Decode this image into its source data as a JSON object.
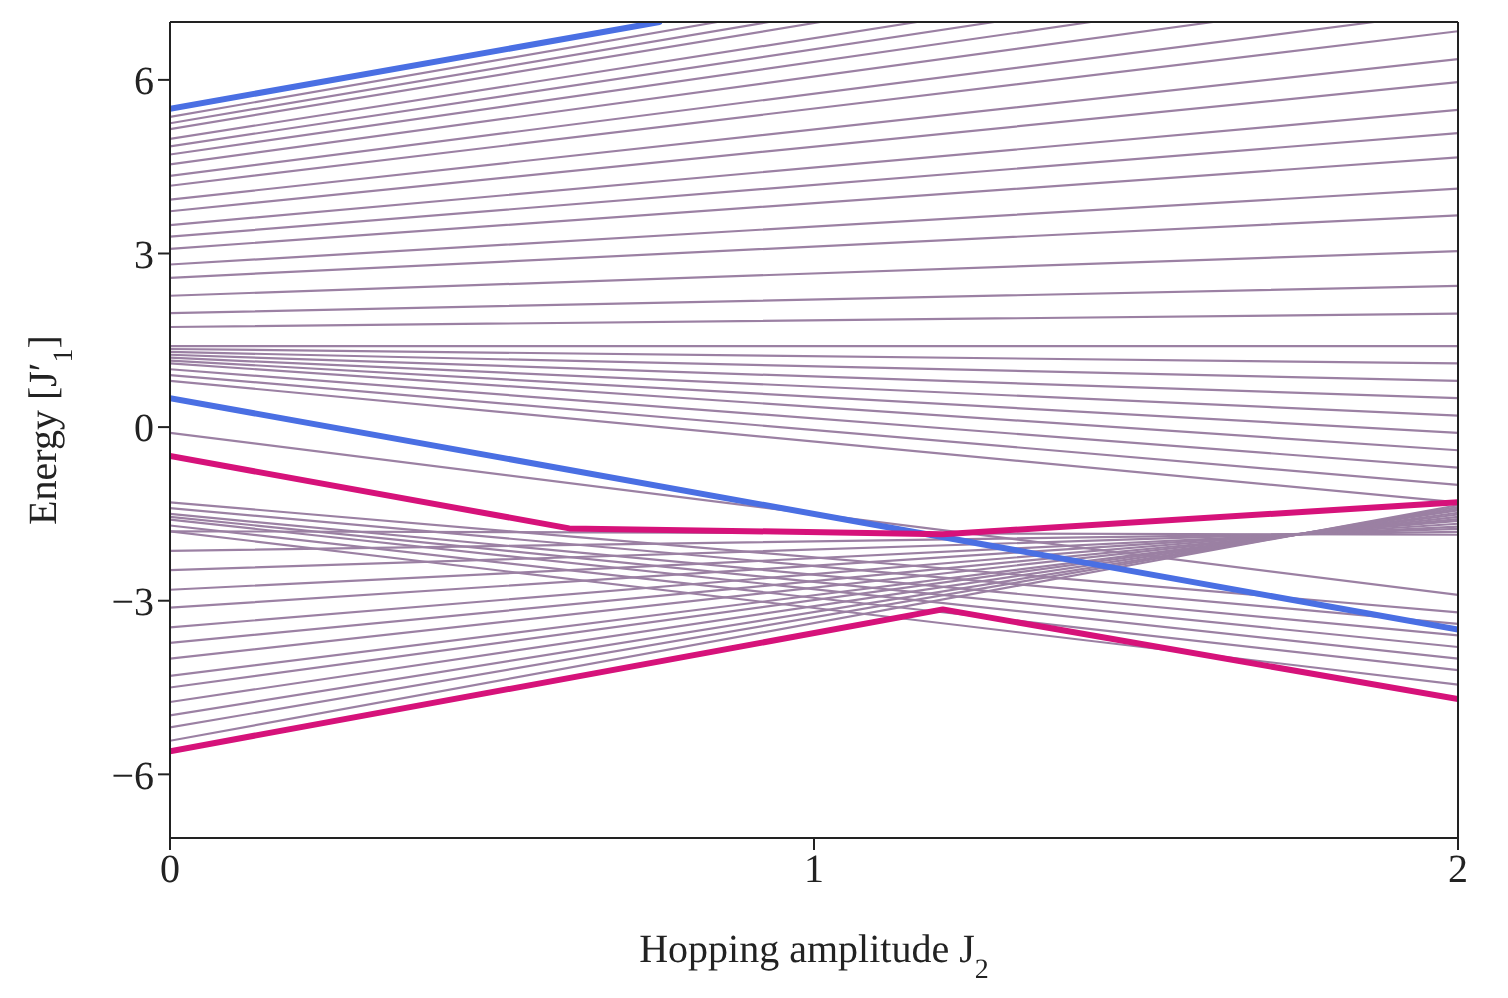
{
  "chart_data": {
    "type": "line",
    "xlabel": "Hopping amplitude J$_{2}$",
    "ylabel": "Energy [J′$_{1}$]",
    "xlim": [
      0,
      2
    ],
    "ylim": [
      -7.1,
      7
    ],
    "xticks": [
      0,
      1,
      2
    ],
    "yticks": [
      {
        "value": -6,
        "label": "−6"
      },
      {
        "value": -3,
        "label": "−3"
      },
      0,
      3,
      6
    ],
    "line_style": "solid",
    "series": [
      {
        "color": "#9b80a3",
        "x": [
          0,
          0.85
        ],
        "values": [
          5.36,
          7
        ]
      },
      {
        "color": "#9b80a3",
        "x": [
          0,
          0.93
        ],
        "values": [
          5.25,
          7
        ]
      },
      {
        "color": "#9b80a3",
        "x": [
          0,
          1.01
        ],
        "values": [
          5.15,
          7
        ]
      },
      {
        "color": "#9b80a3",
        "x": [
          0,
          1.16
        ],
        "values": [
          4.98,
          7
        ]
      },
      {
        "color": "#9b80a3",
        "x": [
          0,
          1.28
        ],
        "values": [
          4.85,
          7
        ]
      },
      {
        "color": "#9b80a3",
        "x": [
          0,
          1.43
        ],
        "values": [
          4.71,
          7
        ]
      },
      {
        "color": "#9b80a3",
        "x": [
          0,
          1.62
        ],
        "values": [
          4.54,
          7
        ]
      },
      {
        "color": "#9b80a3",
        "x": [
          0,
          1.87
        ],
        "values": [
          4.34,
          7
        ]
      },
      {
        "color": "#9b80a3",
        "x": [
          0,
          2
        ],
        "values": [
          4.17,
          6.84
        ]
      },
      {
        "color": "#9b80a3",
        "x": [
          0,
          2
        ],
        "values": [
          3.93,
          6.36
        ]
      },
      {
        "color": "#9b80a3",
        "x": [
          0,
          2
        ],
        "values": [
          3.73,
          5.96
        ]
      },
      {
        "color": "#9b80a3",
        "x": [
          0,
          2
        ],
        "values": [
          3.49,
          5.48
        ]
      },
      {
        "color": "#9b80a3",
        "x": [
          0,
          2
        ],
        "values": [
          3.29,
          5.08
        ]
      },
      {
        "color": "#9b80a3",
        "x": [
          0,
          2
        ],
        "values": [
          3.08,
          4.66
        ]
      },
      {
        "color": "#9b80a3",
        "x": [
          0,
          2
        ],
        "values": [
          2.81,
          4.12
        ]
      },
      {
        "color": "#9b80a3",
        "x": [
          0,
          2
        ],
        "values": [
          2.58,
          3.66
        ]
      },
      {
        "color": "#9b80a3",
        "x": [
          0,
          2
        ],
        "values": [
          2.27,
          3.04
        ]
      },
      {
        "color": "#9b80a3",
        "x": [
          0,
          2
        ],
        "values": [
          1.97,
          2.44
        ]
      },
      {
        "color": "#9b80a3",
        "x": [
          0,
          2
        ],
        "values": [
          1.73,
          1.96
        ]
      },
      {
        "color": "#9b80a3",
        "x": [
          0,
          2
        ],
        "values": [
          1.4,
          1.4
        ]
      },
      {
        "color": "#9b80a3",
        "x": [
          0,
          2
        ],
        "values": [
          1.35,
          1.1
        ]
      },
      {
        "color": "#9b80a3",
        "x": [
          0,
          2
        ],
        "values": [
          1.3,
          0.8
        ]
      },
      {
        "color": "#9b80a3",
        "x": [
          0,
          2
        ],
        "values": [
          1.25,
          0.5
        ]
      },
      {
        "color": "#9b80a3",
        "x": [
          0,
          2
        ],
        "values": [
          1.2,
          0.2
        ]
      },
      {
        "color": "#9b80a3",
        "x": [
          0,
          2
        ],
        "values": [
          1.15,
          -0.1
        ]
      },
      {
        "color": "#9b80a3",
        "x": [
          0,
          2
        ],
        "values": [
          1.1,
          -0.4
        ]
      },
      {
        "color": "#9b80a3",
        "x": [
          0,
          2
        ],
        "values": [
          1.0,
          -0.7
        ]
      },
      {
        "color": "#9b80a3",
        "x": [
          0,
          2
        ],
        "values": [
          0.9,
          -1.0
        ]
      },
      {
        "color": "#9b80a3",
        "x": [
          0,
          2
        ],
        "values": [
          0.8,
          -1.3
        ]
      },
      {
        "color": "#9b80a3",
        "x": [
          0,
          2
        ],
        "values": [
          -0.1,
          -2.9
        ]
      },
      {
        "color": "#9b80a3",
        "x": [
          0,
          2
        ],
        "values": [
          -1.3,
          -3.2
        ]
      },
      {
        "color": "#9b80a3",
        "x": [
          0,
          2
        ],
        "values": [
          -1.4,
          -3.4
        ]
      },
      {
        "color": "#9b80a3",
        "x": [
          0,
          2
        ],
        "values": [
          -1.5,
          -3.6
        ]
      },
      {
        "color": "#9b80a3",
        "x": [
          0,
          2
        ],
        "values": [
          -1.55,
          -3.8
        ]
      },
      {
        "color": "#9b80a3",
        "x": [
          0,
          2
        ],
        "values": [
          -1.6,
          -4.0
        ]
      },
      {
        "color": "#9b80a3",
        "x": [
          0,
          2
        ],
        "values": [
          -1.7,
          -4.2
        ]
      },
      {
        "color": "#9b80a3",
        "x": [
          0,
          2
        ],
        "values": [
          -1.8,
          -4.45
        ]
      },
      {
        "color": "#9b80a3",
        "x": [
          0,
          2
        ],
        "values": [
          -1.8,
          -1.86
        ]
      },
      {
        "color": "#9b80a3",
        "x": [
          0,
          2
        ],
        "values": [
          -2.14,
          -1.81
        ]
      },
      {
        "color": "#9b80a3",
        "x": [
          0,
          2
        ],
        "values": [
          -2.47,
          -1.76
        ]
      },
      {
        "color": "#9b80a3",
        "x": [
          0,
          2
        ],
        "values": [
          -2.81,
          -1.72
        ]
      },
      {
        "color": "#9b80a3",
        "x": [
          0,
          2
        ],
        "values": [
          -3.12,
          -1.67
        ]
      },
      {
        "color": "#9b80a3",
        "x": [
          0,
          2
        ],
        "values": [
          -3.46,
          -1.62
        ]
      },
      {
        "color": "#9b80a3",
        "x": [
          0,
          2
        ],
        "values": [
          -3.73,
          -1.59
        ]
      },
      {
        "color": "#9b80a3",
        "x": [
          0,
          2
        ],
        "values": [
          -4.0,
          -1.55
        ]
      },
      {
        "color": "#9b80a3",
        "x": [
          0,
          2
        ],
        "values": [
          -4.3,
          -1.51
        ]
      },
      {
        "color": "#9b80a3",
        "x": [
          0,
          2
        ],
        "values": [
          -4.5,
          -1.48
        ]
      },
      {
        "color": "#9b80a3",
        "x": [
          0,
          2
        ],
        "values": [
          -4.75,
          -1.44
        ]
      },
      {
        "color": "#9b80a3",
        "x": [
          0,
          2
        ],
        "values": [
          -4.98,
          -1.41
        ]
      },
      {
        "color": "#9b80a3",
        "x": [
          0,
          2
        ],
        "values": [
          -5.19,
          -1.38
        ]
      },
      {
        "color": "#9b80a3",
        "x": [
          0,
          2
        ],
        "values": [
          -5.42,
          -1.35
        ]
      },
      {
        "color": "#4a6fe3",
        "x": [
          0,
          0.76
        ],
        "values": [
          5.5,
          7
        ]
      },
      {
        "color": "#4a6fe3",
        "x": [
          0,
          2
        ],
        "values": [
          0.5,
          -3.5
        ]
      },
      {
        "color": "#d6127a",
        "x": [
          0,
          0.62,
          1.2,
          2
        ],
        "values": [
          -0.5,
          -1.75,
          -1.85,
          -1.3
        ]
      },
      {
        "color": "#d6127a",
        "x": [
          0,
          1.2,
          2
        ],
        "values": [
          -5.6,
          -3.15,
          -4.7
        ]
      }
    ]
  }
}
